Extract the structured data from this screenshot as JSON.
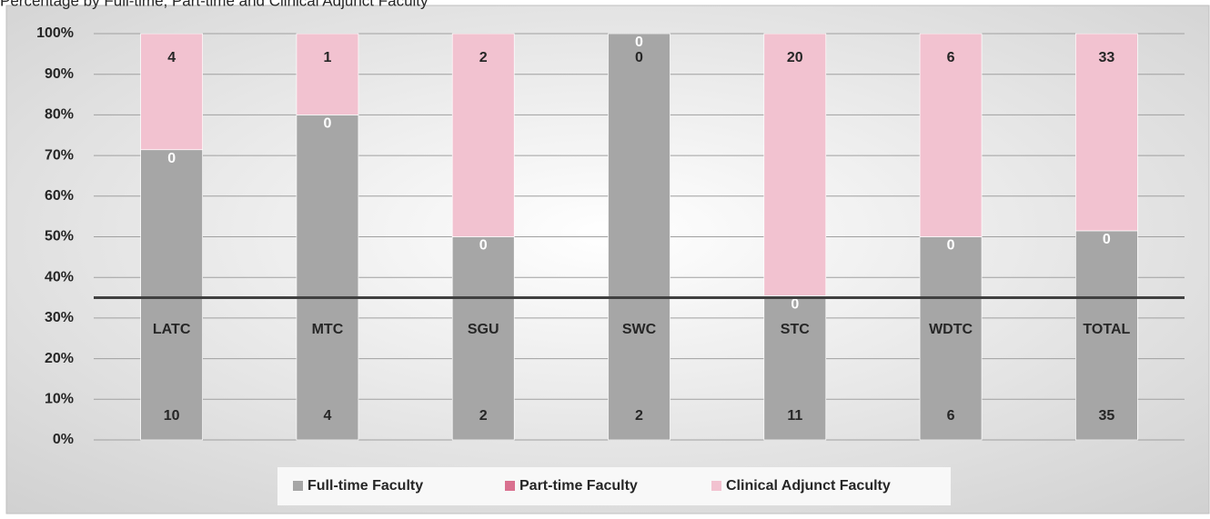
{
  "chart_data": {
    "type": "bar",
    "stacking": "percent",
    "title": "Percentage by Full-time, Part-time and Clinical Adjunct Faculty",
    "categories": [
      "LATC",
      "MTC",
      "SGU",
      "SWC",
      "STC",
      "WDTC",
      "TOTAL"
    ],
    "series": [
      {
        "name": "Full-time Faculty",
        "color": "#a6a6a6",
        "values": [
          10,
          4,
          2,
          2,
          11,
          6,
          35
        ]
      },
      {
        "name": "Part-time Faculty",
        "color": "#d9708f",
        "values": [
          0,
          0,
          0,
          0,
          0,
          0,
          0
        ]
      },
      {
        "name": "Clinical Adjunct Faculty",
        "color": "#f2c2d0",
        "values": [
          4,
          1,
          2,
          0,
          20,
          6,
          33
        ]
      }
    ],
    "ylim": [
      0,
      100
    ],
    "yticks": [
      {
        "value": 0,
        "label": "0%"
      },
      {
        "value": 10,
        "label": "10%"
      },
      {
        "value": 20,
        "label": "20%"
      },
      {
        "value": 30,
        "label": "30%"
      },
      {
        "value": 40,
        "label": "40%"
      },
      {
        "value": 50,
        "label": "50%"
      },
      {
        "value": 60,
        "label": "60%"
      },
      {
        "value": 70,
        "label": "70%"
      },
      {
        "value": 80,
        "label": "80%"
      },
      {
        "value": 90,
        "label": "90%"
      },
      {
        "value": 100,
        "label": "100%"
      }
    ],
    "x_axis_crosses_at": 35,
    "grid": true,
    "legend": "bottom"
  }
}
